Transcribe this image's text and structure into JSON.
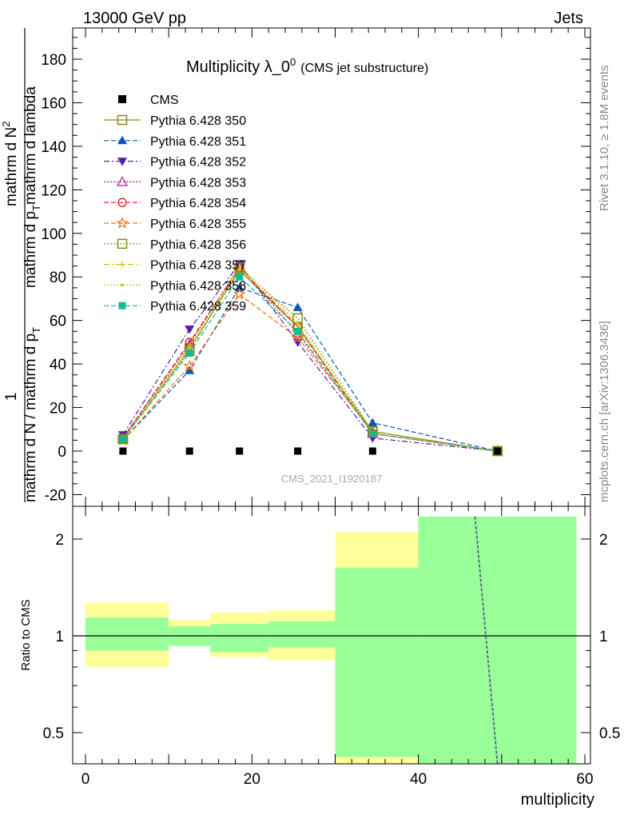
{
  "header": {
    "energy_label": "13000 GeV pp",
    "category_label": "Jets",
    "side_label_top": "Rivet 3.1.10, ≥ 1.8M events",
    "side_label_bottom": "mcplots.cern.ch [arXiv:1306.3436]",
    "analysis_label": "CMS_2021_I1920187"
  },
  "chart_data": [
    {
      "type": "line",
      "title": "Multiplicity λ_0",
      "title_superscript": "0",
      "subtitle": "(CMS jet substructure)",
      "xlabel": "multiplicity",
      "ylabel_parts": [
        "1",
        "mathrm d N / mathrm d p",
        "T",
        "mathrm d N",
        "2",
        "mathrm d p",
        "T",
        "mathrm d lambda"
      ],
      "xlim": [
        -2,
        61
      ],
      "ylim": [
        -25,
        195
      ],
      "yticks": [
        -20,
        0,
        20,
        40,
        60,
        80,
        100,
        120,
        140,
        160,
        180
      ],
      "reference": {
        "name": "CMS",
        "x": [
          4.5,
          12.5,
          18.5,
          25.5,
          34.5,
          49.5
        ],
        "values": [
          0,
          0,
          0,
          0,
          0,
          0
        ]
      },
      "series": [
        {
          "name": "Pythia 6.428 350",
          "color": "#8b8b1a",
          "marker": "square-open",
          "dash": "solid",
          "x": [
            4.5,
            12.5,
            18.5,
            25.5,
            34.5,
            49.5
          ],
          "values": [
            5.5,
            47,
            83,
            57,
            9,
            0
          ]
        },
        {
          "name": "Pythia 6.428 351",
          "color": "#0b56b8",
          "marker": "triangle-up",
          "dash": "dashed",
          "x": [
            4.5,
            12.5,
            18.5,
            25.5,
            34.5,
            49.5
          ],
          "values": [
            5.0,
            37,
            75,
            66,
            13,
            0
          ]
        },
        {
          "name": "Pythia 6.428 352",
          "color": "#5a1eaa",
          "marker": "triangle-down",
          "dash": "dashdot",
          "x": [
            4.5,
            12.5,
            18.5,
            25.5,
            34.5,
            49.5
          ],
          "values": [
            7.5,
            56,
            86,
            50,
            6,
            0
          ]
        },
        {
          "name": "Pythia 6.428 353",
          "color": "#b0208a",
          "marker": "triangle-up-open",
          "dash": "dotted",
          "x": [
            4.5,
            12.5,
            18.5,
            25.5,
            34.5,
            49.5
          ],
          "values": [
            6.0,
            49,
            85,
            54,
            8,
            0
          ]
        },
        {
          "name": "Pythia 6.428 354",
          "color": "#e01818",
          "marker": "circle-open",
          "dash": "dashed",
          "x": [
            4.5,
            12.5,
            18.5,
            25.5,
            34.5,
            49.5
          ],
          "values": [
            6.0,
            50,
            84,
            57,
            8,
            0
          ]
        },
        {
          "name": "Pythia 6.428 355",
          "color": "#f07010",
          "marker": "star-open",
          "dash": "dashed",
          "x": [
            4.5,
            12.5,
            18.5,
            25.5,
            34.5,
            49.5
          ],
          "values": [
            5.0,
            39,
            72,
            52,
            9,
            0
          ]
        },
        {
          "name": "Pythia 6.428 356",
          "color": "#8b8b1a",
          "marker": "square-open",
          "dash": "dotted",
          "x": [
            4.5,
            12.5,
            18.5,
            25.5,
            34.5,
            49.5
          ],
          "values": [
            5.5,
            46,
            84,
            61,
            9,
            0
          ]
        },
        {
          "name": "Pythia 6.428 357",
          "color": "#d8c010",
          "marker": "cross",
          "dash": "dashdot",
          "x": [
            4.5,
            12.5,
            18.5,
            25.5,
            34.5,
            49.5
          ],
          "values": [
            5.5,
            47,
            84,
            58,
            8,
            0
          ]
        },
        {
          "name": "Pythia 6.428 358",
          "color": "#b8d028",
          "marker": "dot",
          "dash": "dotted",
          "x": [
            4.5,
            12.5,
            18.5,
            25.5,
            34.5,
            49.5
          ],
          "values": [
            5.5,
            48,
            85,
            59,
            8,
            0
          ]
        },
        {
          "name": "Pythia 6.428 359",
          "color": "#18b890",
          "marker": "square",
          "dash": "dashed",
          "x": [
            4.5,
            12.5,
            18.5,
            25.5,
            34.5,
            49.5
          ],
          "values": [
            5.5,
            45,
            80,
            55,
            8,
            0
          ]
        }
      ]
    },
    {
      "type": "area",
      "ylabel": "Ratio to CMS",
      "xlabel": "multiplicity",
      "xlim": [
        -2,
        61
      ],
      "ylim": [
        0.4,
        2.35
      ],
      "log_scale": true,
      "yticks": [
        0.5,
        1,
        2
      ],
      "xticks": [
        0,
        20,
        40,
        60
      ],
      "bands": [
        {
          "x": [
            0,
            10
          ],
          "stat": [
            0.9,
            1.14
          ],
          "total": [
            0.8,
            1.27
          ]
        },
        {
          "x": [
            10,
            15
          ],
          "stat": [
            0.93,
            1.07
          ],
          "total": [
            0.93,
            1.12
          ]
        },
        {
          "x": [
            15,
            22
          ],
          "stat": [
            0.89,
            1.09
          ],
          "total": [
            0.86,
            1.18
          ]
        },
        {
          "x": [
            22,
            30
          ],
          "stat": [
            0.92,
            1.11
          ],
          "total": [
            0.84,
            1.2
          ]
        },
        {
          "x": [
            30,
            40
          ],
          "stat": [
            0.42,
            1.63
          ],
          "total": [
            0.4,
            2.1
          ]
        },
        {
          "x": [
            40,
            59
          ],
          "stat": [
            0.4,
            2.35
          ],
          "total": [
            0.4,
            2.35
          ]
        }
      ],
      "ratio_line": {
        "x": [
          46.8,
          49.5
        ],
        "values": [
          2.35,
          0.4
        ],
        "color": "#5a6e8c"
      }
    }
  ]
}
